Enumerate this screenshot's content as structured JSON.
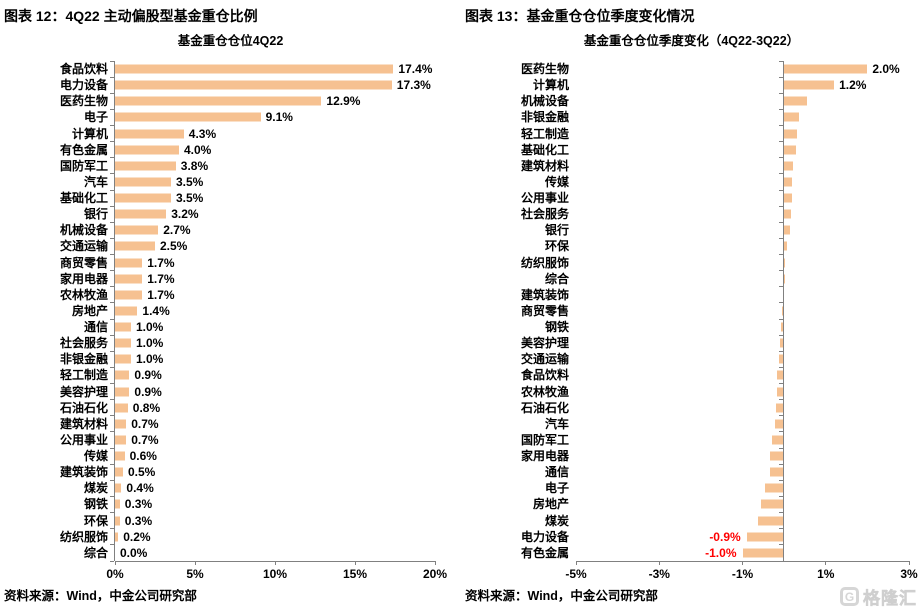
{
  "panels": [
    {
      "header": "图表 12：4Q22 主动偏股型基金重仓比例",
      "source": "资料来源：Wind，中金公司研究部"
    },
    {
      "header": "图表 13：基金重仓仓位季度变化情况",
      "source": "资料来源：Wind，中金公司研究部"
    }
  ],
  "colors": {
    "bar": "#F6C191",
    "axis": "#808080",
    "negative_label": "#FF0000"
  },
  "watermark": {
    "text": "格隆汇",
    "logo_letter": "G"
  },
  "chart_data": [
    {
      "type": "bar",
      "orientation": "horizontal",
      "title": "基金重仓仓位4Q22",
      "categories": [
        "食品饮料",
        "电力设备",
        "医药生物",
        "电子",
        "计算机",
        "有色金属",
        "国防军工",
        "汽车",
        "基础化工",
        "银行",
        "机械设备",
        "交通运输",
        "商贸零售",
        "家用电器",
        "农林牧渔",
        "房地产",
        "通信",
        "社会服务",
        "非银金融",
        "轻工制造",
        "美容护理",
        "石油石化",
        "建筑材料",
        "公用事业",
        "传媒",
        "建筑装饰",
        "煤炭",
        "钢铁",
        "环保",
        "纺织服饰",
        "综合"
      ],
      "values": [
        17.4,
        17.3,
        12.9,
        9.1,
        4.3,
        4.0,
        3.8,
        3.5,
        3.5,
        3.2,
        2.7,
        2.5,
        1.7,
        1.7,
        1.7,
        1.4,
        1.0,
        1.0,
        1.0,
        0.9,
        0.9,
        0.8,
        0.7,
        0.7,
        0.6,
        0.5,
        0.4,
        0.3,
        0.3,
        0.2,
        0.0
      ],
      "labels": [
        "17.4%",
        "17.3%",
        "12.9%",
        "9.1%",
        "4.3%",
        "4.0%",
        "3.8%",
        "3.5%",
        "3.5%",
        "3.2%",
        "2.7%",
        "2.5%",
        "1.7%",
        "1.7%",
        "1.7%",
        "1.4%",
        "1.0%",
        "1.0%",
        "1.0%",
        "0.9%",
        "0.9%",
        "0.8%",
        "0.7%",
        "0.7%",
        "0.6%",
        "0.5%",
        "0.4%",
        "0.3%",
        "0.3%",
        "0.2%",
        "0.0%"
      ],
      "xlim": [
        0,
        20
      ],
      "xticks": [
        {
          "v": 0,
          "label": "0%"
        },
        {
          "v": 5,
          "label": "5%"
        },
        {
          "v": 10,
          "label": "10%"
        },
        {
          "v": 15,
          "label": "15%"
        },
        {
          "v": 20,
          "label": "20%"
        }
      ],
      "bar_color": "#F6C191",
      "grid": false,
      "legend": null
    },
    {
      "type": "bar",
      "orientation": "horizontal",
      "title": "基金重仓仓位季度变化（4Q22-3Q22）",
      "categories": [
        "医药生物",
        "计算机",
        "机械设备",
        "非银金融",
        "轻工制造",
        "基础化工",
        "建筑材料",
        "传媒",
        "公用事业",
        "社会服务",
        "银行",
        "环保",
        "纺织服饰",
        "综合",
        "建筑装饰",
        "商贸零售",
        "钢铁",
        "美容护理",
        "交通运输",
        "食品饮料",
        "农林牧渔",
        "石油石化",
        "汽车",
        "国防军工",
        "家用电器",
        "通信",
        "电子",
        "房地产",
        "煤炭",
        "电力设备",
        "有色金属"
      ],
      "values": [
        2.0,
        1.2,
        0.55,
        0.36,
        0.3,
        0.28,
        0.22,
        0.19,
        0.18,
        0.16,
        0.14,
        0.08,
        0.02,
        0.01,
        -0.02,
        -0.05,
        -0.07,
        -0.09,
        -0.12,
        -0.17,
        -0.18,
        -0.2,
        -0.22,
        -0.28,
        -0.33,
        -0.34,
        -0.47,
        -0.56,
        -0.62,
        -0.9,
        -1.0
      ],
      "labels": [
        "2.0%",
        "1.2%",
        null,
        null,
        null,
        null,
        null,
        null,
        null,
        null,
        null,
        null,
        null,
        null,
        null,
        null,
        null,
        null,
        null,
        null,
        null,
        null,
        null,
        null,
        null,
        null,
        null,
        null,
        null,
        "-0.9%",
        "-1.0%"
      ],
      "xlim": [
        -5,
        3
      ],
      "xticks": [
        {
          "v": -5,
          "label": "-5%"
        },
        {
          "v": -3,
          "label": "-3%"
        },
        {
          "v": -1,
          "label": "-1%"
        },
        {
          "v": 1,
          "label": "1%"
        },
        {
          "v": 3,
          "label": "3%"
        }
      ],
      "bar_color": "#F6C191",
      "negative_label_color": "#FF0000",
      "grid": false,
      "legend": null
    }
  ]
}
